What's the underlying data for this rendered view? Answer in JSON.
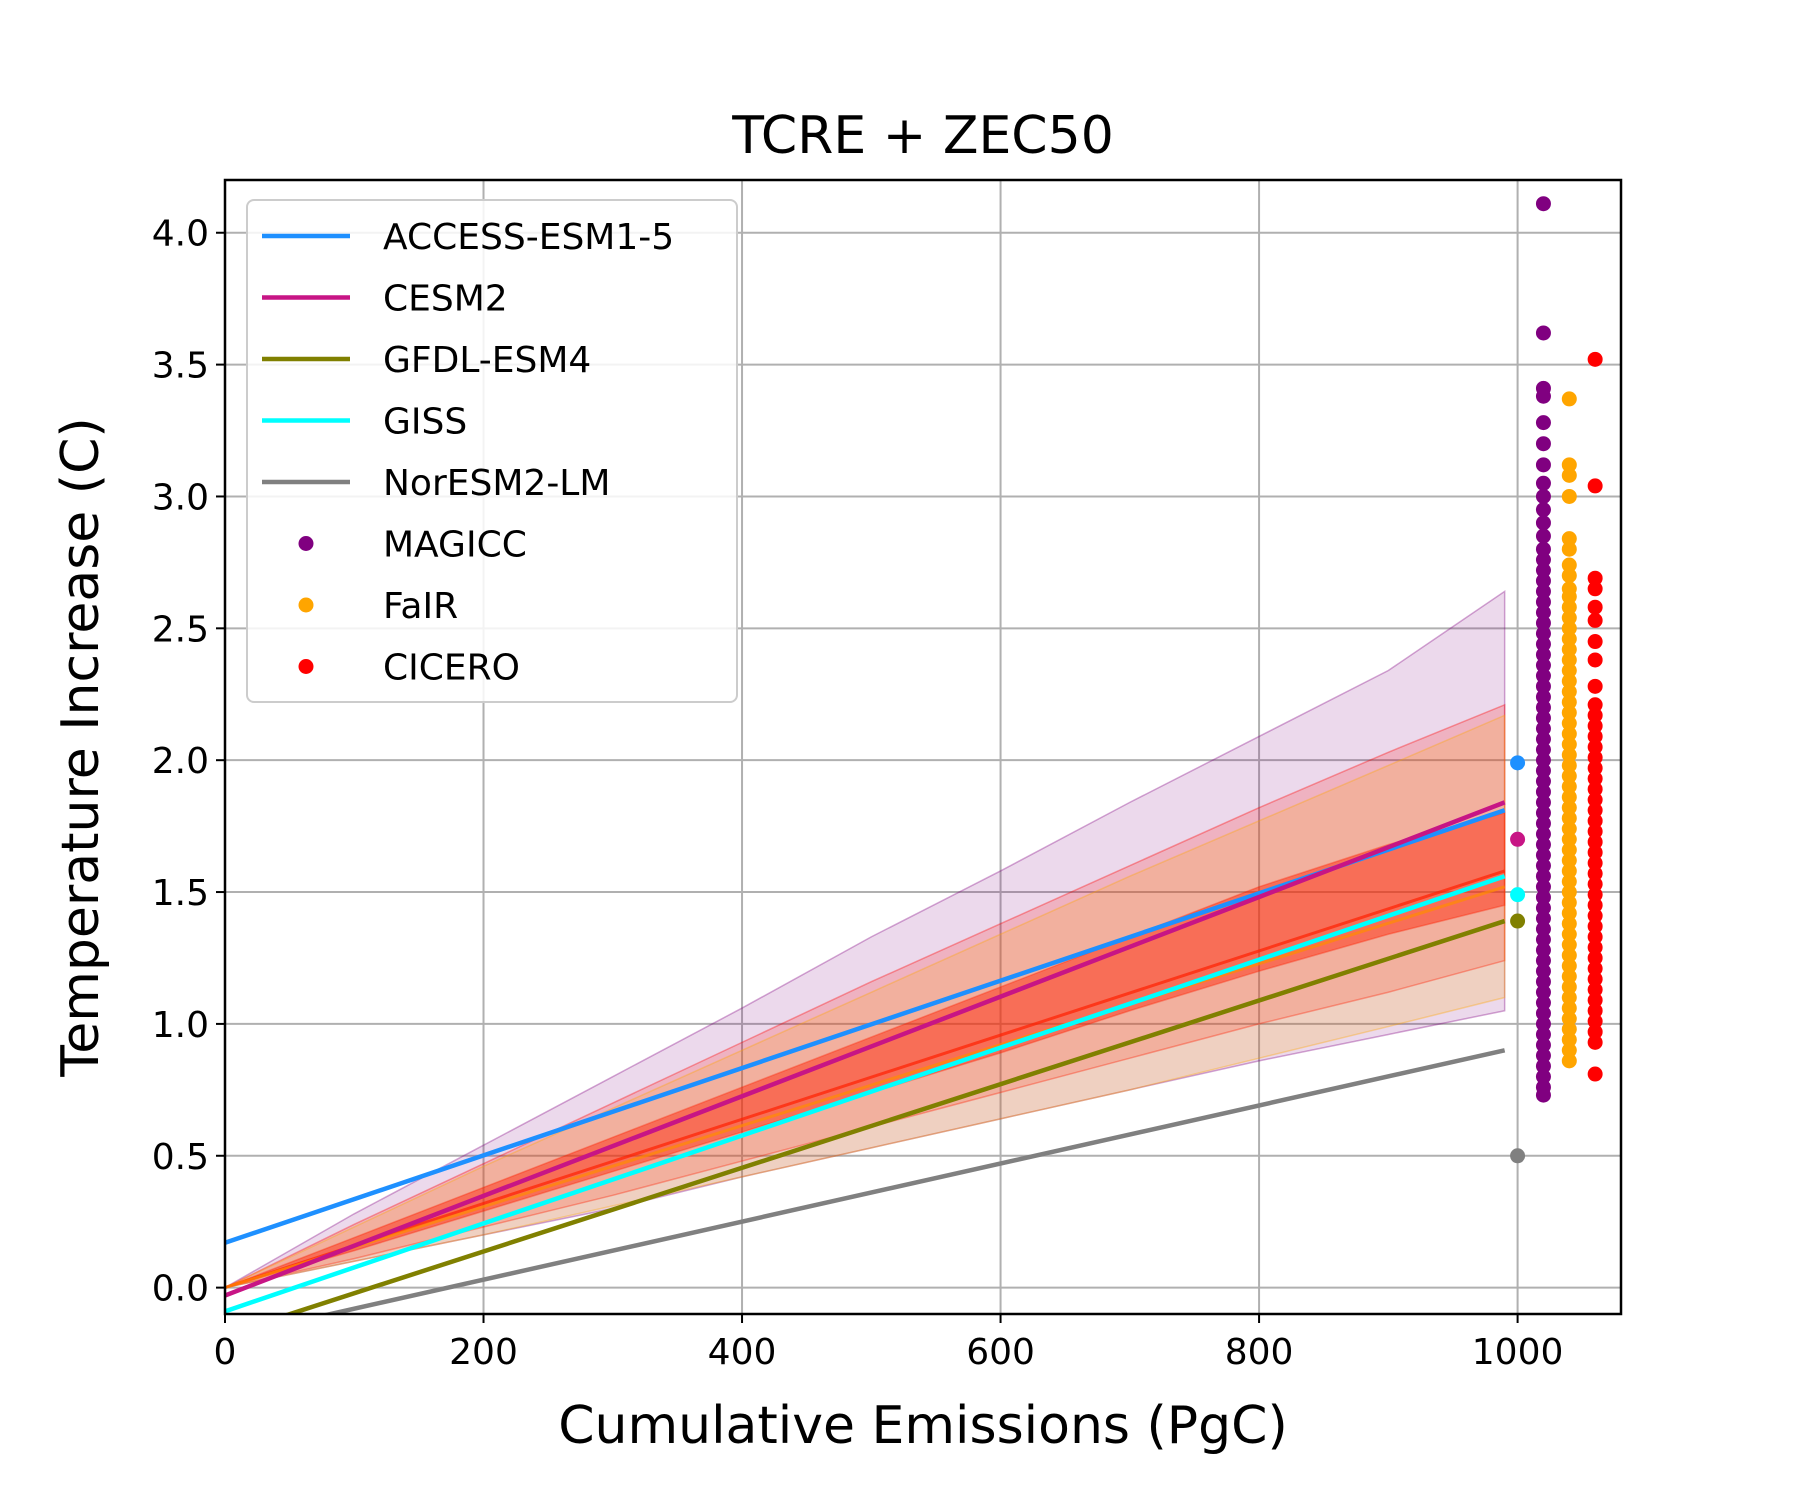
{
  "chart_data": {
    "type": "line",
    "title": "TCRE + ZEC50",
    "xlabel": "Cumulative Emissions (PgC)",
    "ylabel": "Temperature Increase (C)",
    "xlim": [
      0,
      1080
    ],
    "ylim": [
      -0.1,
      4.2
    ],
    "xticks": [
      0,
      200,
      400,
      600,
      800,
      1000
    ],
    "yticks": [
      0.0,
      0.5,
      1.0,
      1.5,
      2.0,
      2.5,
      3.0,
      3.5,
      4.0
    ],
    "xtick_labels": [
      "0",
      "200",
      "400",
      "600",
      "800",
      "1000"
    ],
    "ytick_labels": [
      "0.0",
      "0.5",
      "1.0",
      "1.5",
      "2.0",
      "2.5",
      "3.0",
      "3.5",
      "4.0"
    ],
    "grid": true,
    "legend_position": "top-left",
    "series": [
      {
        "name": "ACCESS-ESM1-5",
        "kind": "line",
        "color": "#1e90ff",
        "x": [
          0,
          990
        ],
        "y": [
          0.17,
          1.81
        ]
      },
      {
        "name": "CESM2",
        "kind": "line",
        "color": "#c71585",
        "x": [
          0,
          990
        ],
        "y": [
          -0.03,
          1.84
        ]
      },
      {
        "name": "GFDL-ESM4",
        "kind": "line",
        "color": "#808000",
        "x": [
          0,
          990
        ],
        "y": [
          -0.18,
          1.39
        ]
      },
      {
        "name": "GISS",
        "kind": "line",
        "color": "#00ffff",
        "x": [
          0,
          990
        ],
        "y": [
          -0.09,
          1.56
        ]
      },
      {
        "name": "NorESM2-LM",
        "kind": "line",
        "color": "#808080",
        "x": [
          0,
          990
        ],
        "y": [
          -0.19,
          0.9
        ]
      },
      {
        "name": "MAGICC",
        "kind": "scatter",
        "color": "#800080",
        "x": 1020,
        "y": [
          4.11,
          3.62,
          3.41,
          3.38,
          3.28,
          3.2,
          3.12,
          3.05,
          3.0,
          2.95,
          2.9,
          2.85,
          2.8,
          2.76,
          2.72,
          2.68,
          2.64,
          2.6,
          2.56,
          2.52,
          2.48,
          2.44,
          2.4,
          2.36,
          2.32,
          2.28,
          2.24,
          2.2,
          2.16,
          2.12,
          2.08,
          2.04,
          2.0,
          1.96,
          1.92,
          1.88,
          1.84,
          1.8,
          1.76,
          1.72,
          1.68,
          1.64,
          1.6,
          1.56,
          1.52,
          1.48,
          1.44,
          1.4,
          1.36,
          1.32,
          1.28,
          1.24,
          1.2,
          1.16,
          1.12,
          1.08,
          1.04,
          1.0,
          0.96,
          0.92,
          0.88,
          0.84,
          0.8,
          0.76,
          0.73
        ]
      },
      {
        "name": "FaIR",
        "kind": "scatter",
        "color": "#ffa500",
        "x": 1040,
        "y": [
          3.37,
          3.12,
          3.08,
          3.0,
          2.84,
          2.8,
          2.74,
          2.7,
          2.65,
          2.62,
          2.58,
          2.54,
          2.5,
          2.46,
          2.42,
          2.38,
          2.34,
          2.3,
          2.26,
          2.22,
          2.18,
          2.14,
          2.1,
          2.06,
          2.02,
          1.98,
          1.94,
          1.9,
          1.86,
          1.82,
          1.78,
          1.74,
          1.7,
          1.66,
          1.62,
          1.58,
          1.54,
          1.5,
          1.46,
          1.42,
          1.38,
          1.34,
          1.3,
          1.26,
          1.22,
          1.18,
          1.14,
          1.1,
          1.06,
          1.02,
          0.98,
          0.94,
          0.9,
          0.86
        ]
      },
      {
        "name": "CICERO",
        "kind": "scatter",
        "color": "#ff0000",
        "x": 1060,
        "y": [
          3.52,
          3.04,
          2.69,
          2.65,
          2.58,
          2.53,
          2.45,
          2.38,
          2.28,
          2.21,
          2.17,
          2.13,
          2.09,
          2.05,
          2.01,
          1.97,
          1.93,
          1.89,
          1.85,
          1.81,
          1.77,
          1.73,
          1.69,
          1.65,
          1.61,
          1.57,
          1.53,
          1.49,
          1.45,
          1.41,
          1.37,
          1.33,
          1.29,
          1.25,
          1.21,
          1.17,
          1.13,
          1.09,
          1.05,
          1.01,
          0.97,
          0.93,
          0.81
        ]
      }
    ],
    "zec50_markers": [
      {
        "model": "ACCESS-ESM1-5",
        "color": "#1e90ff",
        "x": 1000,
        "y": 1.99
      },
      {
        "model": "CESM2",
        "color": "#c71585",
        "x": 1000,
        "y": 1.7
      },
      {
        "model": "GISS",
        "color": "#00ffff",
        "x": 1000,
        "y": 1.49
      },
      {
        "model": "GFDL-ESM4",
        "color": "#808000",
        "x": 1000,
        "y": 1.39
      },
      {
        "model": "NorESM2-LM",
        "color": "#808080",
        "x": 1000,
        "y": 0.5
      }
    ],
    "ranges": [
      {
        "name": "MAGICC range",
        "color": "#800080",
        "opacity": 0.15,
        "x": [
          0,
          100,
          200,
          300,
          400,
          500,
          600,
          700,
          800,
          900,
          990
        ],
        "lower": [
          0.0,
          0.1,
          0.2,
          0.3,
          0.42,
          0.53,
          0.64,
          0.75,
          0.86,
          0.96,
          1.05
        ],
        "upper": [
          0.0,
          0.28,
          0.54,
          0.8,
          1.06,
          1.33,
          1.58,
          1.84,
          2.09,
          2.34,
          2.64
        ]
      },
      {
        "name": "CICERO range",
        "color": "#ff0000",
        "opacity": 0.18,
        "x": [
          0,
          100,
          200,
          300,
          400,
          500,
          600,
          700,
          800,
          900,
          990
        ],
        "lower": [
          0.0,
          0.11,
          0.23,
          0.35,
          0.48,
          0.61,
          0.74,
          0.87,
          1.0,
          1.12,
          1.24
        ],
        "upper": [
          0.0,
          0.24,
          0.47,
          0.7,
          0.93,
          1.16,
          1.38,
          1.6,
          1.82,
          2.03,
          2.21
        ]
      },
      {
        "name": "FaIR range",
        "color": "#ffa500",
        "opacity": 0.18,
        "x": [
          0,
          100,
          200,
          300,
          400,
          500,
          600,
          700,
          800,
          900,
          990
        ],
        "lower": [
          0.0,
          0.1,
          0.2,
          0.31,
          0.42,
          0.53,
          0.64,
          0.75,
          0.87,
          0.99,
          1.1
        ],
        "upper": [
          0.0,
          0.23,
          0.46,
          0.68,
          0.9,
          1.12,
          1.34,
          1.56,
          1.77,
          1.98,
          2.17
        ]
      },
      {
        "name": "inner range",
        "color": "#ff2000",
        "opacity": 0.45,
        "x": [
          0,
          100,
          200,
          300,
          400,
          500,
          600,
          700,
          800,
          900,
          990
        ],
        "lower": [
          0.0,
          0.14,
          0.29,
          0.44,
          0.59,
          0.74,
          0.89,
          1.05,
          1.2,
          1.34,
          1.45
        ],
        "upper": [
          0.0,
          0.19,
          0.38,
          0.57,
          0.76,
          0.95,
          1.14,
          1.33,
          1.52,
          1.68,
          1.8
        ]
      }
    ],
    "median_lines": [
      {
        "name": "CICERO median",
        "color": "#ff2000",
        "x": [
          0,
          990
        ],
        "y": [
          0.0,
          1.58
        ]
      },
      {
        "name": "FaIR median",
        "color": "#ff8c00",
        "x": [
          0,
          990
        ],
        "y": [
          0.0,
          1.52
        ]
      }
    ]
  }
}
